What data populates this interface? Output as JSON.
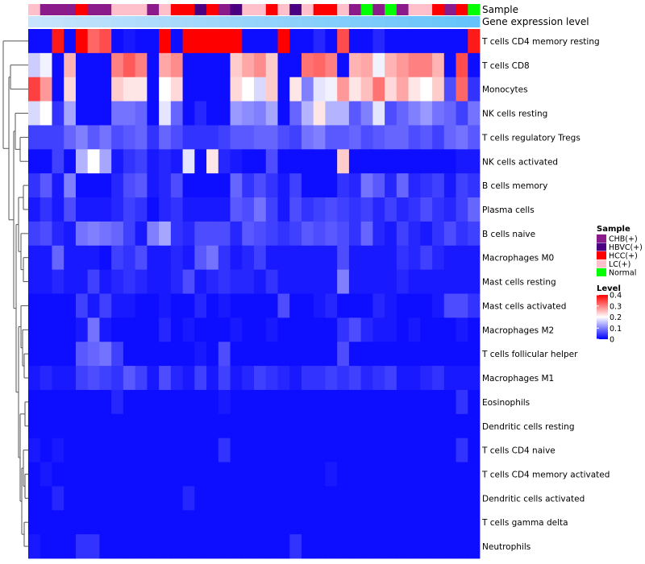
{
  "chart_data": {
    "type": "heatmap",
    "annotation_labels": [
      "Sample",
      "Gene expression level"
    ],
    "sample_legend": {
      "title": "Sample",
      "entries": [
        {
          "label": "CHB(+)",
          "color": "#8B1A8B"
        },
        {
          "label": "HBVC(+)",
          "color": "#4B0082"
        },
        {
          "label": "HCC(+)",
          "color": "#FF0000"
        },
        {
          "label": "LC(+)",
          "color": "#FFC0CB"
        },
        {
          "label": "Normal",
          "color": "#00FF00"
        }
      ]
    },
    "samples": [
      "LC(+)",
      "CHB(+)",
      "CHB(+)",
      "CHB(+)",
      "HCC(+)",
      "CHB(+)",
      "CHB(+)",
      "LC(+)",
      "LC(+)",
      "LC(+)",
      "CHB(+)",
      "LC(+)",
      "HCC(+)",
      "HCC(+)",
      "HBVC(+)",
      "HCC(+)",
      "CHB(+)",
      "HBVC(+)",
      "LC(+)",
      "LC(+)",
      "HCC(+)",
      "LC(+)",
      "HBVC(+)",
      "LC(+)",
      "HCC(+)",
      "HCC(+)",
      "LC(+)",
      "CHB(+)",
      "Normal",
      "CHB(+)",
      "Normal",
      "CHB(+)",
      "LC(+)",
      "LC(+)",
      "HCC(+)",
      "CHB(+)",
      "HCC(+)",
      "Normal"
    ],
    "level_legend": {
      "title": "Level",
      "ticks": [
        "0.4",
        "0.3",
        "0.2",
        "0.1",
        "0"
      ],
      "range": [
        0,
        0.4
      ],
      "colors": [
        "#0000FF",
        "#FFFFFF",
        "#FF0000"
      ]
    },
    "rows": [
      "T cells CD4 memory resting",
      "T cells CD8",
      "Monocytes",
      "NK cells resting",
      "T cells regulatory  Tregs",
      "NK cells activated",
      "B cells memory",
      "Plasma cells",
      "B cells naive",
      "Macrophages M0",
      "Mast cells resting",
      "Mast cells activated",
      "Macrophages M2",
      "T cells follicular helper",
      "Macrophages M1",
      "Eosinophils",
      "Dendritic cells resting",
      "T cells CD4 naive",
      "T cells CD4 memory activated",
      "Dendritic cells activated",
      "T cells gamma delta",
      "Neutrophils"
    ],
    "values": [
      [
        0.01,
        0.01,
        0.38,
        0.01,
        0.4,
        0.32,
        0.34,
        0.01,
        0.02,
        0.01,
        0.01,
        0.4,
        0.01,
        0.4,
        0.4,
        0.4,
        0.4,
        0.4,
        0.01,
        0.01,
        0.01,
        0.4,
        0.01,
        0.01,
        0.03,
        0.01,
        0.34,
        0.01,
        0.01,
        0.03,
        0.01,
        0.01,
        0.01,
        0.01,
        0.01,
        0.01,
        0.01,
        0.38
      ],
      [
        0.16,
        0.19,
        0.01,
        0.26,
        0.01,
        0.01,
        0.01,
        0.3,
        0.33,
        0.3,
        0.01,
        0.27,
        0.29,
        0.01,
        0.01,
        0.01,
        0.01,
        0.24,
        0.27,
        0.29,
        0.24,
        0.01,
        0.01,
        0.31,
        0.32,
        0.3,
        0.01,
        0.26,
        0.27,
        0.19,
        0.26,
        0.28,
        0.3,
        0.3,
        0.26,
        0.01,
        0.34,
        0.01
      ],
      [
        0.35,
        0.28,
        0.01,
        0.23,
        0.01,
        0.01,
        0.01,
        0.24,
        0.22,
        0.22,
        0.01,
        0.2,
        0.23,
        0.01,
        0.01,
        0.01,
        0.01,
        0.23,
        0.2,
        0.17,
        0.24,
        0.01,
        0.22,
        0.1,
        0.18,
        0.19,
        0.28,
        0.22,
        0.25,
        0.31,
        0.23,
        0.27,
        0.22,
        0.2,
        0.24,
        0.06,
        0.32,
        0.04
      ],
      [
        0.17,
        0.2,
        0.04,
        0.13,
        0.01,
        0.01,
        0.01,
        0.09,
        0.09,
        0.08,
        0.01,
        0.18,
        0.08,
        0.01,
        0.03,
        0.01,
        0.01,
        0.12,
        0.11,
        0.1,
        0.13,
        0.01,
        0.08,
        0.14,
        0.22,
        0.14,
        0.14,
        0.07,
        0.1,
        0.18,
        0.06,
        0.08,
        0.1,
        0.12,
        0.09,
        0.08,
        0.05,
        0.09
      ],
      [
        0.05,
        0.05,
        0.05,
        0.08,
        0.1,
        0.07,
        0.09,
        0.06,
        0.07,
        0.08,
        0.04,
        0.08,
        0.06,
        0.04,
        0.04,
        0.04,
        0.05,
        0.07,
        0.07,
        0.08,
        0.08,
        0.06,
        0.05,
        0.09,
        0.1,
        0.07,
        0.07,
        0.08,
        0.06,
        0.07,
        0.08,
        0.08,
        0.06,
        0.07,
        0.05,
        0.08,
        0.09,
        0.07
      ],
      [
        0.01,
        0.01,
        0.05,
        0.01,
        0.14,
        0.2,
        0.13,
        0.02,
        0.04,
        0.05,
        0.02,
        0.03,
        0.02,
        0.18,
        0.01,
        0.22,
        0.03,
        0.02,
        0.01,
        0.01,
        0.06,
        0.01,
        0.01,
        0.01,
        0.01,
        0.01,
        0.24,
        0.01,
        0.01,
        0.01,
        0.01,
        0.01,
        0.01,
        0.01,
        0.01,
        0.01,
        0.02,
        0.02
      ],
      [
        0.04,
        0.07,
        0.02,
        0.1,
        0.01,
        0.01,
        0.01,
        0.03,
        0.06,
        0.07,
        0.02,
        0.03,
        0.06,
        0.01,
        0.01,
        0.01,
        0.01,
        0.08,
        0.04,
        0.06,
        0.04,
        0.02,
        0.05,
        0.01,
        0.01,
        0.01,
        0.04,
        0.03,
        0.09,
        0.07,
        0.03,
        0.08,
        0.03,
        0.04,
        0.05,
        0.02,
        0.05,
        0.04
      ],
      [
        0.02,
        0.04,
        0.02,
        0.06,
        0.02,
        0.02,
        0.02,
        0.03,
        0.05,
        0.04,
        0.01,
        0.03,
        0.04,
        0.02,
        0.02,
        0.02,
        0.02,
        0.07,
        0.06,
        0.09,
        0.05,
        0.02,
        0.06,
        0.04,
        0.05,
        0.06,
        0.05,
        0.04,
        0.05,
        0.03,
        0.05,
        0.03,
        0.04,
        0.06,
        0.04,
        0.03,
        0.05,
        0.08
      ],
      [
        0.05,
        0.06,
        0.03,
        0.02,
        0.09,
        0.1,
        0.09,
        0.08,
        0.05,
        0.02,
        0.1,
        0.13,
        0.04,
        0.03,
        0.06,
        0.06,
        0.06,
        0.03,
        0.07,
        0.06,
        0.05,
        0.04,
        0.05,
        0.07,
        0.06,
        0.07,
        0.06,
        0.04,
        0.08,
        0.03,
        0.02,
        0.05,
        0.03,
        0.02,
        0.04,
        0.06,
        0.04,
        0.05
      ],
      [
        0.02,
        0.02,
        0.08,
        0.02,
        0.02,
        0.02,
        0.01,
        0.05,
        0.04,
        0.06,
        0.02,
        0.02,
        0.03,
        0.02,
        0.07,
        0.09,
        0.04,
        0.02,
        0.03,
        0.05,
        0.02,
        0.02,
        0.02,
        0.02,
        0.02,
        0.02,
        0.06,
        0.02,
        0.02,
        0.02,
        0.02,
        0.04,
        0.03,
        0.05,
        0.03,
        0.02,
        0.02,
        0.02
      ],
      [
        0.02,
        0.02,
        0.03,
        0.02,
        0.02,
        0.05,
        0.02,
        0.03,
        0.04,
        0.03,
        0.02,
        0.02,
        0.03,
        0.06,
        0.02,
        0.03,
        0.04,
        0.03,
        0.03,
        0.02,
        0.04,
        0.02,
        0.02,
        0.02,
        0.02,
        0.02,
        0.1,
        0.02,
        0.02,
        0.02,
        0.02,
        0.03,
        0.02,
        0.02,
        0.02,
        0.02,
        0.02,
        0.02
      ],
      [
        0.01,
        0.01,
        0.01,
        0.01,
        0.05,
        0.02,
        0.05,
        0.02,
        0.02,
        0.01,
        0.01,
        0.02,
        0.01,
        0.01,
        0.03,
        0.01,
        0.02,
        0.01,
        0.01,
        0.01,
        0.01,
        0.06,
        0.01,
        0.01,
        0.02,
        0.03,
        0.01,
        0.01,
        0.01,
        0.03,
        0.02,
        0.01,
        0.01,
        0.01,
        0.02,
        0.06,
        0.06,
        0.04
      ],
      [
        0.01,
        0.01,
        0.01,
        0.01,
        0.02,
        0.09,
        0.02,
        0.01,
        0.01,
        0.01,
        0.01,
        0.03,
        0.01,
        0.02,
        0.01,
        0.01,
        0.01,
        0.02,
        0.01,
        0.01,
        0.02,
        0.01,
        0.01,
        0.01,
        0.01,
        0.01,
        0.04,
        0.06,
        0.03,
        0.02,
        0.02,
        0.01,
        0.02,
        0.01,
        0.01,
        0.01,
        0.02,
        0.01
      ],
      [
        0.01,
        0.01,
        0.01,
        0.01,
        0.07,
        0.08,
        0.09,
        0.05,
        0.01,
        0.01,
        0.01,
        0.01,
        0.01,
        0.01,
        0.02,
        0.01,
        0.06,
        0.01,
        0.01,
        0.01,
        0.01,
        0.01,
        0.01,
        0.01,
        0.01,
        0.01,
        0.06,
        0.01,
        0.01,
        0.01,
        0.01,
        0.01,
        0.01,
        0.01,
        0.01,
        0.01,
        0.01,
        0.01
      ],
      [
        0.02,
        0.03,
        0.02,
        0.02,
        0.05,
        0.06,
        0.05,
        0.04,
        0.07,
        0.05,
        0.02,
        0.06,
        0.03,
        0.02,
        0.05,
        0.02,
        0.05,
        0.02,
        0.03,
        0.05,
        0.04,
        0.03,
        0.02,
        0.04,
        0.04,
        0.05,
        0.04,
        0.05,
        0.03,
        0.04,
        0.05,
        0.02,
        0.02,
        0.03,
        0.04,
        0.02,
        0.02,
        0.02
      ],
      [
        0.01,
        0.01,
        0.01,
        0.01,
        0.01,
        0.01,
        0.01,
        0.03,
        0.01,
        0.01,
        0.01,
        0.01,
        0.01,
        0.01,
        0.01,
        0.01,
        0.02,
        0.01,
        0.01,
        0.01,
        0.01,
        0.01,
        0.01,
        0.01,
        0.01,
        0.01,
        0.01,
        0.01,
        0.01,
        0.01,
        0.01,
        0.01,
        0.01,
        0.01,
        0.01,
        0.01,
        0.04,
        0.01
      ],
      [
        0.01,
        0.01,
        0.01,
        0.01,
        0.01,
        0.01,
        0.01,
        0.01,
        0.01,
        0.01,
        0.01,
        0.01,
        0.01,
        0.01,
        0.01,
        0.01,
        0.01,
        0.01,
        0.01,
        0.01,
        0.01,
        0.01,
        0.01,
        0.01,
        0.01,
        0.01,
        0.01,
        0.01,
        0.01,
        0.01,
        0.01,
        0.01,
        0.01,
        0.01,
        0.01,
        0.01,
        0.01,
        0.01
      ],
      [
        0.02,
        0.01,
        0.02,
        0.01,
        0.01,
        0.01,
        0.01,
        0.01,
        0.01,
        0.01,
        0.01,
        0.01,
        0.01,
        0.01,
        0.01,
        0.01,
        0.04,
        0.01,
        0.01,
        0.01,
        0.01,
        0.01,
        0.01,
        0.01,
        0.01,
        0.01,
        0.01,
        0.01,
        0.01,
        0.01,
        0.01,
        0.01,
        0.01,
        0.01,
        0.01,
        0.01,
        0.04,
        0.01
      ],
      [
        0.01,
        0.02,
        0.01,
        0.01,
        0.01,
        0.01,
        0.01,
        0.01,
        0.01,
        0.01,
        0.01,
        0.01,
        0.01,
        0.01,
        0.01,
        0.01,
        0.01,
        0.01,
        0.01,
        0.01,
        0.01,
        0.01,
        0.01,
        0.01,
        0.01,
        0.02,
        0.01,
        0.01,
        0.01,
        0.01,
        0.01,
        0.01,
        0.01,
        0.01,
        0.01,
        0.01,
        0.01,
        0.01
      ],
      [
        0.01,
        0.01,
        0.03,
        0.01,
        0.01,
        0.01,
        0.01,
        0.01,
        0.01,
        0.01,
        0.01,
        0.01,
        0.01,
        0.03,
        0.01,
        0.01,
        0.01,
        0.01,
        0.01,
        0.01,
        0.01,
        0.01,
        0.01,
        0.01,
        0.01,
        0.01,
        0.01,
        0.01,
        0.01,
        0.01,
        0.01,
        0.01,
        0.01,
        0.01,
        0.01,
        0.01,
        0.01,
        0.01
      ],
      [
        0.01,
        0.01,
        0.01,
        0.01,
        0.01,
        0.01,
        0.01,
        0.01,
        0.01,
        0.01,
        0.01,
        0.01,
        0.01,
        0.01,
        0.01,
        0.01,
        0.01,
        0.01,
        0.01,
        0.01,
        0.01,
        0.01,
        0.01,
        0.01,
        0.01,
        0.01,
        0.01,
        0.01,
        0.01,
        0.01,
        0.01,
        0.01,
        0.01,
        0.01,
        0.01,
        0.01,
        0.01,
        0.01
      ],
      [
        0.02,
        0.01,
        0.01,
        0.01,
        0.04,
        0.04,
        0.01,
        0.01,
        0.01,
        0.01,
        0.01,
        0.01,
        0.01,
        0.01,
        0.01,
        0.01,
        0.01,
        0.01,
        0.01,
        0.01,
        0.01,
        0.01,
        0.04,
        0.01,
        0.01,
        0.01,
        0.01,
        0.01,
        0.01,
        0.01,
        0.01,
        0.01,
        0.01,
        0.01,
        0.01,
        0.01,
        0.01,
        0.01
      ]
    ]
  }
}
